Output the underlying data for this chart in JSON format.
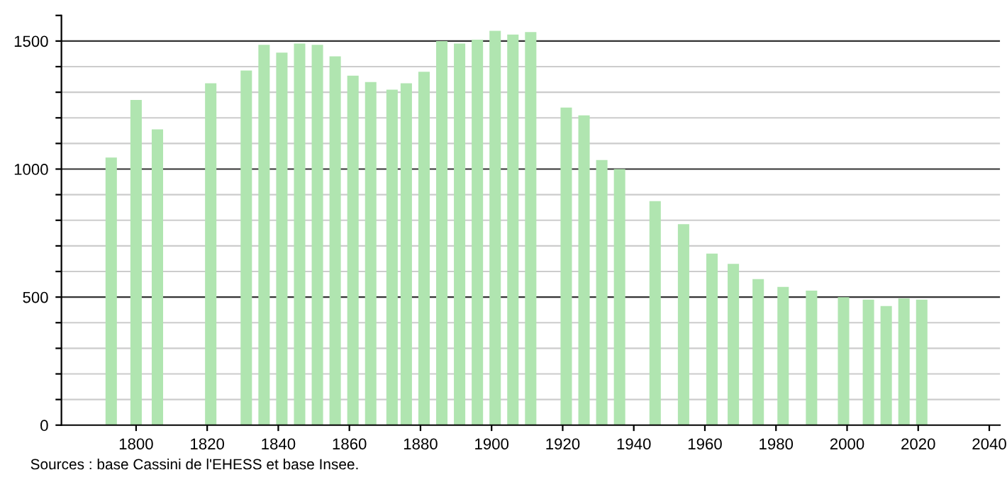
{
  "chart_data": {
    "type": "bar",
    "x": [
      1793,
      1800,
      1806,
      1821,
      1831,
      1836,
      1841,
      1846,
      1851,
      1856,
      1861,
      1866,
      1872,
      1876,
      1881,
      1886,
      1891,
      1896,
      1901,
      1906,
      1911,
      1921,
      1926,
      1931,
      1936,
      1946,
      1954,
      1962,
      1968,
      1975,
      1982,
      1990,
      1999,
      2006,
      2011,
      2016,
      2021
    ],
    "values": [
      1045,
      1270,
      1155,
      1335,
      1385,
      1485,
      1455,
      1490,
      1485,
      1440,
      1365,
      1340,
      1310,
      1335,
      1380,
      1500,
      1490,
      1505,
      1540,
      1525,
      1535,
      1240,
      1210,
      1035,
      1000,
      875,
      785,
      670,
      630,
      570,
      540,
      525,
      500,
      490,
      465,
      495,
      490
    ],
    "color": "#b0e5b0",
    "xlim": [
      1779,
      2043
    ],
    "xticks": [
      1800,
      1820,
      1840,
      1860,
      1880,
      1900,
      1920,
      1940,
      1960,
      1980,
      2000,
      2020,
      2040
    ],
    "ylim": [
      0,
      1600
    ],
    "yticks": [
      0,
      {
        "value": 100,
        "label": null
      },
      {
        "value": 200,
        "label": null
      },
      {
        "value": 300,
        "label": null
      },
      {
        "value": 400,
        "label": null
      },
      500,
      {
        "value": 600,
        "label": null
      },
      {
        "value": 700,
        "label": null
      },
      {
        "value": 800,
        "label": null
      },
      {
        "value": 900,
        "label": null
      },
      1000,
      {
        "value": 1100,
        "label": null
      },
      {
        "value": 1200,
        "label": null
      },
      {
        "value": 1300,
        "label": null
      },
      {
        "value": 1400,
        "label": null
      },
      1500,
      {
        "value": 1600,
        "label": null
      }
    ],
    "grid": "y",
    "annotations": [
      "Sources : base Cassini de l'EHESS et base Insee."
    ]
  }
}
